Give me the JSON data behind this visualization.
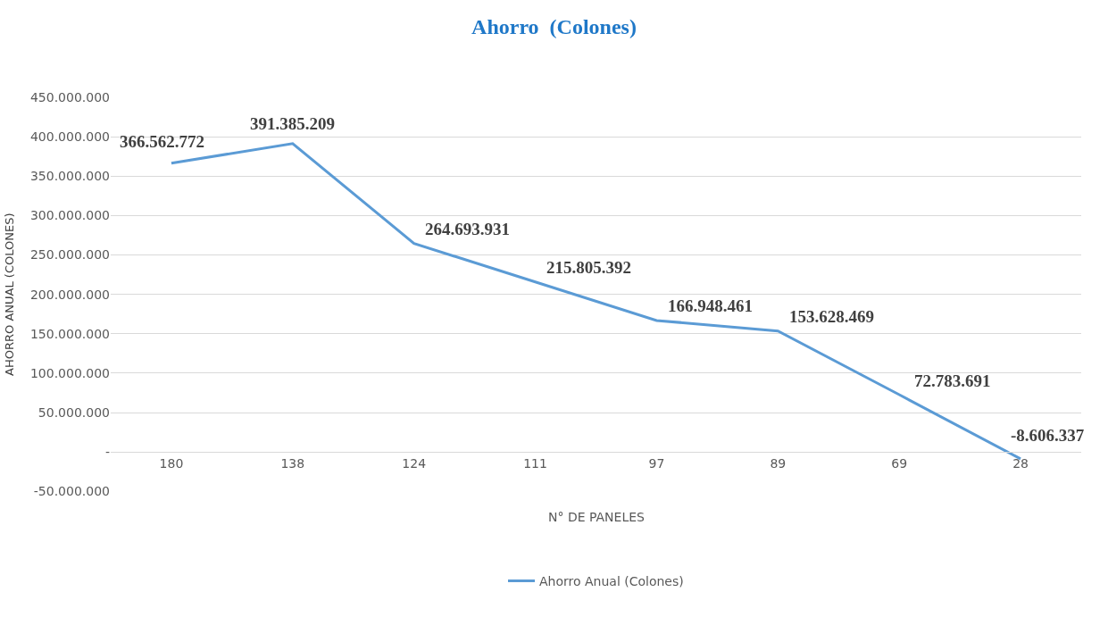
{
  "chart_data": {
    "type": "line",
    "title": "Ahorro  (Colones)",
    "xlabel": "N° DE PANELES",
    "ylabel": "AHORRO ANUAL (COLONES)",
    "categories": [
      "180",
      "138",
      "124",
      "111",
      "97",
      "89",
      "69",
      "28"
    ],
    "series": [
      {
        "name": "Ahorro Anual (Colones)",
        "color": "#5b9bd5",
        "values": [
          366562772,
          391385209,
          264693931,
          215805392,
          166948461,
          153628469,
          72783691,
          -8606337
        ],
        "value_labels": [
          "366.562.772",
          "391.385.209",
          "264.693.931",
          "215.805.392",
          "166.948.461",
          "153.628.469",
          "72.783.691",
          "-8.606.337"
        ]
      }
    ],
    "ylim": [
      -50000000,
      450000000
    ],
    "yticks": [
      {
        "value": -50000000,
        "label": "-50.000.000"
      },
      {
        "value": 0,
        "label": "-"
      },
      {
        "value": 50000000,
        "label": "50.000.000"
      },
      {
        "value": 100000000,
        "label": "100.000.000"
      },
      {
        "value": 150000000,
        "label": "150.000.000"
      },
      {
        "value": 200000000,
        "label": "200.000.000"
      },
      {
        "value": 250000000,
        "label": "250.000.000"
      },
      {
        "value": 300000000,
        "label": "300.000.000"
      },
      {
        "value": 350000000,
        "label": "350.000.000"
      },
      {
        "value": 400000000,
        "label": "400.000.000"
      },
      {
        "value": 450000000,
        "label": "450.000.000"
      }
    ],
    "grid": "y",
    "legend": "bottom",
    "marker": "none",
    "line_style": "solid"
  }
}
